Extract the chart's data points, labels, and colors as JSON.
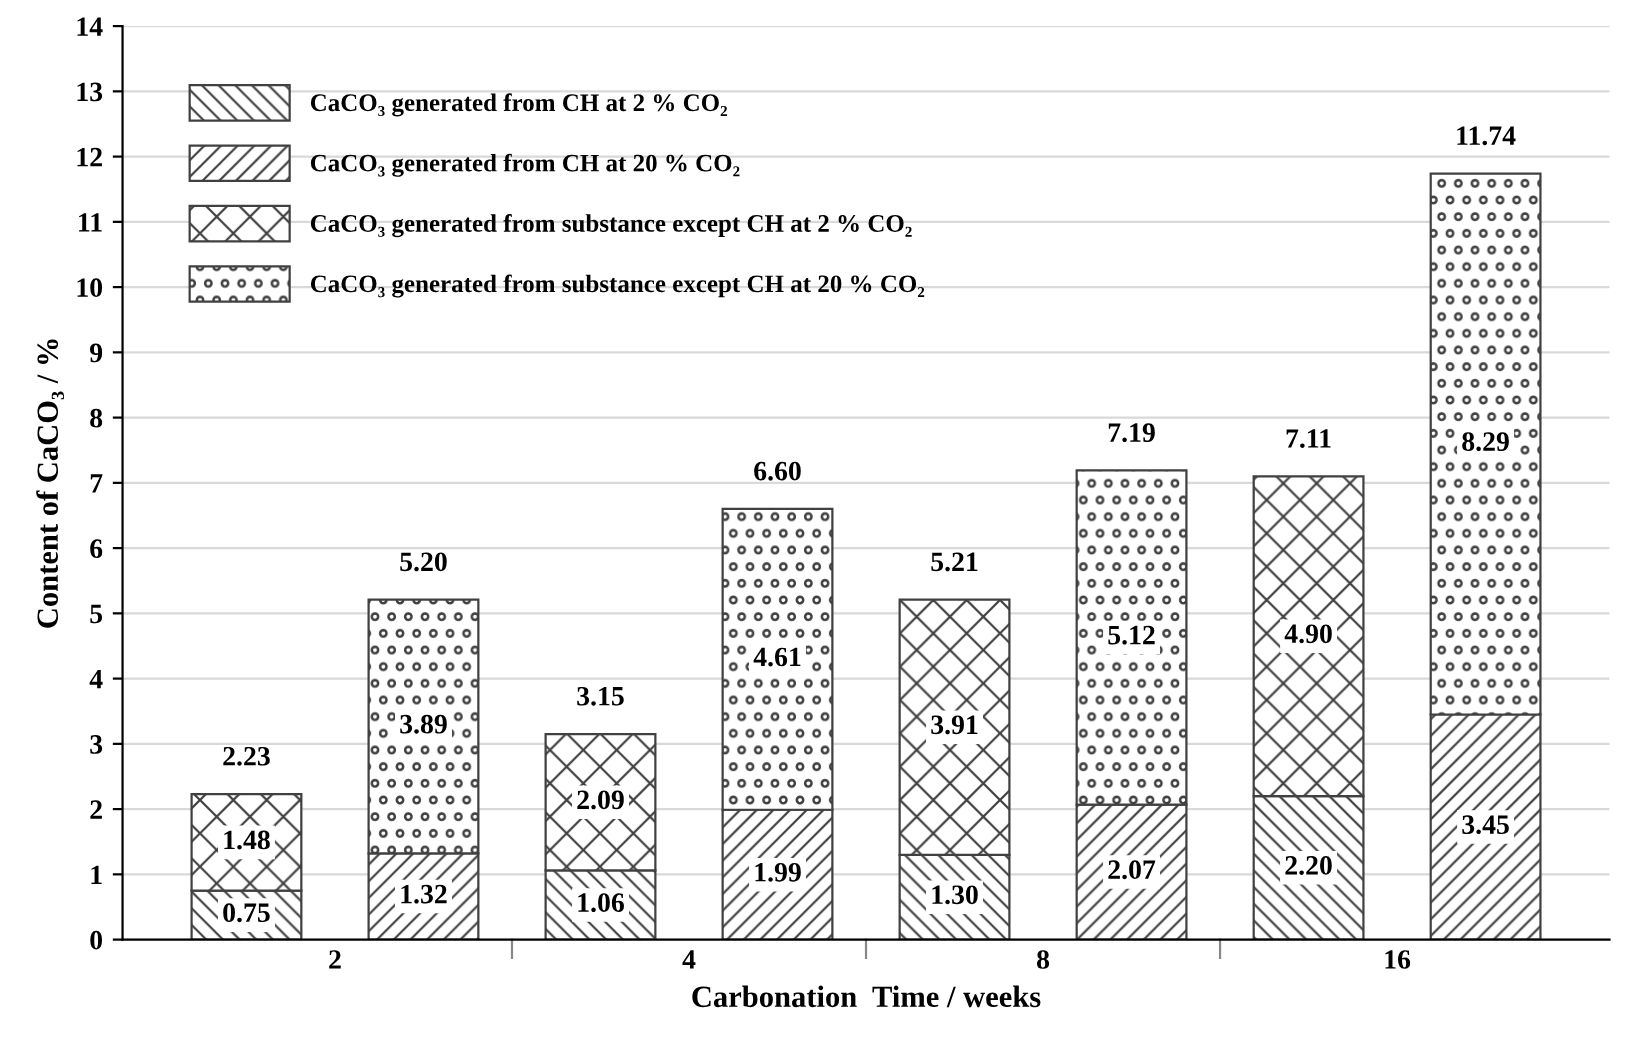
{
  "chart_data": {
    "type": "bar",
    "stacked": true,
    "xlabel": "Carbonation  Time / weeks",
    "ylabel": "Content of CaCO₃ / %",
    "categories": [
      "2",
      null,
      "4",
      null,
      "8",
      null,
      "16",
      null
    ],
    "series": [
      {
        "name": "CaCO₃ generated from CH at 2 % CO₂",
        "color": "#404040",
        "values": [
          0.75,
          null,
          1.06,
          null,
          1.3,
          null,
          2.2,
          null
        ],
        "value_labels": [
          "0.75",
          null,
          "1.06",
          null,
          "1.30",
          null,
          "2.20",
          null
        ]
      },
      {
        "name": "CaCO₃ generated from CH at 20 % CO₂",
        "color": "#404040",
        "values": [
          null,
          1.32,
          null,
          1.99,
          null,
          2.07,
          null,
          3.45
        ],
        "value_labels": [
          null,
          "1.32",
          null,
          "1.99",
          null,
          "2.07",
          null,
          "3.45"
        ]
      },
      {
        "name": "CaCO₃ generated from substance except CH at 2 % CO₂",
        "color": "#404040",
        "values": [
          1.48,
          null,
          2.09,
          null,
          3.91,
          null,
          4.9,
          null
        ],
        "value_labels": [
          "1.48",
          null,
          "2.09",
          null,
          "3.91",
          null,
          "4.90",
          null
        ]
      },
      {
        "name": "CaCO₃ generated from substance except CH at 20 % CO₂",
        "color": "#404040",
        "values": [
          null,
          3.89,
          null,
          4.61,
          null,
          5.12,
          null,
          8.29
        ],
        "value_labels": [
          null,
          "3.89",
          null,
          "4.61",
          null,
          "5.12",
          null,
          "8.29"
        ]
      }
    ],
    "totals": [
      "2.23",
      "5.20",
      "3.15",
      "6.60",
      "5.21",
      "7.19",
      "7.11",
      "11.74"
    ],
    "ylim": [
      0,
      14
    ],
    "yticks": [
      0,
      1,
      2,
      3,
      4,
      5,
      6,
      7,
      8,
      9,
      10,
      11,
      12,
      13,
      14
    ],
    "grid": "y",
    "legend": "top left"
  }
}
